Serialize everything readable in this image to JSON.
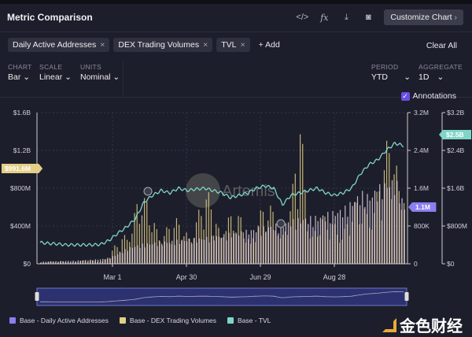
{
  "header": {
    "title": "Metric Comparison",
    "customize_label": "Customize Chart",
    "customize_chevron": "›",
    "tools": [
      {
        "icon": "code-icon",
        "glyph": "</>"
      },
      {
        "icon": "function-icon",
        "glyph": "fx"
      },
      {
        "icon": "download-icon",
        "glyph": "⤓"
      },
      {
        "icon": "camera-icon",
        "glyph": "◙"
      }
    ]
  },
  "metrics": {
    "chips": [
      {
        "label": "Daily Active Addresses"
      },
      {
        "label": "DEX Trading Volumes"
      },
      {
        "label": "TVL"
      }
    ],
    "remove_glyph": "×",
    "add_label": "+ Add",
    "clear_label": "Clear All"
  },
  "controls": {
    "chart": {
      "label": "CHART",
      "value": "Bar ⌄"
    },
    "scale": {
      "label": "SCALE",
      "value": "Linear ⌄"
    },
    "units": {
      "label": "UNITS",
      "value": "Nominal ⌄"
    },
    "period": {
      "label": "PERIOD",
      "value": "YTD",
      "chevron": "⌄"
    },
    "aggregate": {
      "label": "AGGREGATE",
      "value": "1D",
      "chevron": "⌄"
    }
  },
  "annotations": {
    "label": "Annotations",
    "checked": true
  },
  "watermark": {
    "text": "Artemis"
  },
  "colors": {
    "daa": "#8a7ff0",
    "dex": "#e3cf86",
    "tvl": "#7fd6c8",
    "bg": "#1d1e2b",
    "accent": "#6b4ee6"
  },
  "chart_data": {
    "type": "bar",
    "x_ticks": [
      "Mar 1",
      "Apr 30",
      "Jun 29",
      "Aug 28"
    ],
    "left_axis": {
      "ticks": [
        "$0",
        "$400M",
        "$800M",
        "$1.2B",
        "$1.6B"
      ],
      "range": [
        0,
        1600
      ],
      "unit": "$M"
    },
    "middle_axis": {
      "ticks": [
        "0",
        "800K",
        "1.6M",
        "2.4M",
        "3.2M"
      ],
      "range": [
        0,
        3200
      ],
      "unit": "K"
    },
    "right_axis": {
      "ticks": [
        "$0",
        "$800M",
        "$1.6B",
        "$2.4B",
        "$3.2B"
      ],
      "range": [
        0,
        3.2
      ],
      "unit": "$B"
    },
    "granularity": "weekly samples, Jan 1 – late Oct",
    "series": [
      {
        "name": "Base - Daily Active Addresses",
        "axis": "middle",
        "type": "bar",
        "values": [
          40,
          45,
          50,
          55,
          60,
          70,
          80,
          90,
          120,
          200,
          300,
          350,
          380,
          400,
          420,
          430,
          450,
          470,
          480,
          500,
          520,
          550,
          580,
          600,
          640,
          680,
          700,
          740,
          780,
          820,
          860,
          880,
          900,
          950,
          1000,
          1050,
          1200,
          1350,
          1300,
          1450,
          1550,
          1600,
          1100
        ]
      },
      {
        "name": "Base - DEX Trading Volumes",
        "axis": "left",
        "type": "bar",
        "values": [
          15,
          20,
          18,
          25,
          22,
          25,
          30,
          30,
          80,
          180,
          320,
          650,
          500,
          420,
          380,
          350,
          330,
          360,
          450,
          550,
          520,
          480,
          400,
          380,
          350,
          420,
          450,
          480,
          430,
          500,
          1250,
          450,
          380,
          350,
          380,
          420,
          450,
          500,
          600,
          750,
          900,
          1100,
          991.6
        ]
      },
      {
        "name": "Base - TVL",
        "axis": "right",
        "type": "line",
        "values": [
          0.45,
          0.43,
          0.42,
          0.4,
          0.4,
          0.4,
          0.4,
          0.41,
          0.5,
          0.65,
          0.78,
          0.95,
          1.3,
          1.45,
          1.55,
          1.5,
          1.6,
          1.55,
          1.58,
          1.6,
          1.55,
          1.5,
          1.4,
          1.45,
          1.5,
          1.6,
          1.65,
          1.6,
          1.25,
          1.45,
          1.5,
          1.55,
          1.6,
          1.5,
          1.45,
          1.5,
          1.6,
          1.9,
          2.1,
          2.2,
          2.4,
          2.55,
          2.5
        ]
      }
    ],
    "last_value_tags": {
      "dex": "$991.6M",
      "daa": "1.1M",
      "tvl": "$2.5B"
    },
    "grid": true
  },
  "legend": [
    {
      "label": "Base - Daily Active Addresses"
    },
    {
      "label": "Base - DEX Trading Volumes"
    },
    {
      "label": "Base - TVL"
    }
  ],
  "footer_brand": {
    "text": "金色财经"
  }
}
